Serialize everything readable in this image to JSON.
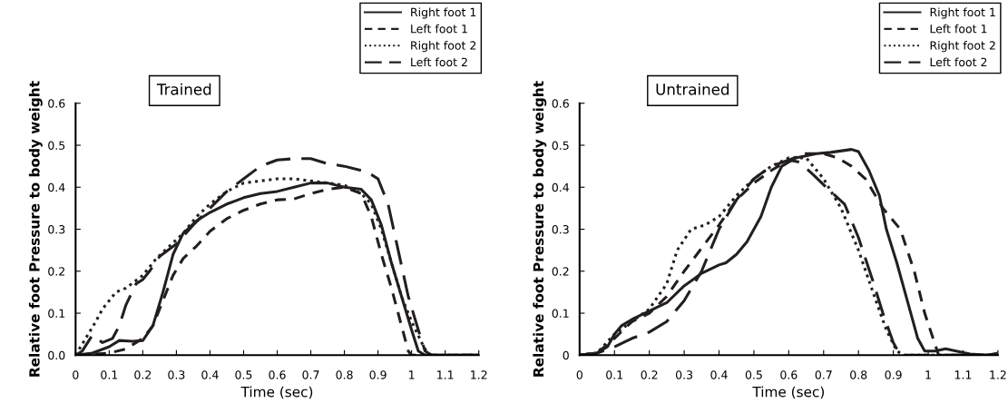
{
  "chart_data": [
    {
      "type": "line",
      "title": "Trained",
      "xlabel": "Time (sec)",
      "ylabel": "Relative foot Pressure to body weight",
      "xlim": [
        0,
        1.2
      ],
      "ylim": [
        0,
        0.6
      ],
      "xticks": [
        0,
        0.1,
        0.2,
        0.3,
        0.4,
        0.5,
        0.6,
        0.7,
        0.8,
        0.9,
        1,
        1.1,
        1.2
      ],
      "yticks": [
        {
          "value": 0,
          "label": "0.0"
        },
        0.1,
        0.2,
        0.3,
        0.4,
        0.5,
        0.6
      ],
      "grid": false,
      "legend": "top right",
      "marker": "none",
      "series": [
        {
          "name": "Right foot 1",
          "color": "#231f20",
          "line_style": "solid",
          "x": [
            0,
            0.05,
            0.1,
            0.13,
            0.17,
            0.2,
            0.23,
            0.26,
            0.29,
            0.32,
            0.36,
            0.4,
            0.45,
            0.5,
            0.55,
            0.6,
            0.65,
            0.7,
            0.75,
            0.8,
            0.85,
            0.88,
            0.91,
            0.94,
            0.97,
            1.0,
            1.02,
            1.04,
            1.2
          ],
          "values": [
            0,
            0.005,
            0.02,
            0.035,
            0.033,
            0.035,
            0.07,
            0.15,
            0.24,
            0.29,
            0.32,
            0.34,
            0.36,
            0.375,
            0.385,
            0.39,
            0.4,
            0.41,
            0.41,
            0.4,
            0.395,
            0.37,
            0.31,
            0.22,
            0.14,
            0.06,
            0.01,
            0,
            0
          ]
        },
        {
          "name": "Left foot 1",
          "color": "#231f20",
          "line_style": "dashed",
          "x": [
            0,
            0.1,
            0.15,
            0.2,
            0.23,
            0.26,
            0.29,
            0.32,
            0.36,
            0.4,
            0.45,
            0.5,
            0.55,
            0.6,
            0.65,
            0.7,
            0.75,
            0.8,
            0.85,
            0.88,
            0.91,
            0.94,
            0.97,
            0.99,
            1.0,
            1.2
          ],
          "values": [
            0,
            0.005,
            0.015,
            0.04,
            0.07,
            0.13,
            0.19,
            0.23,
            0.26,
            0.295,
            0.325,
            0.345,
            0.36,
            0.37,
            0.372,
            0.385,
            0.395,
            0.4,
            0.385,
            0.33,
            0.24,
            0.16,
            0.07,
            0.01,
            0,
            0
          ]
        },
        {
          "name": "Right foot 2",
          "color": "#231f20",
          "line_style": "dotted",
          "x": [
            0,
            0.03,
            0.06,
            0.08,
            0.12,
            0.15,
            0.2,
            0.24,
            0.28,
            0.32,
            0.36,
            0.4,
            0.45,
            0.5,
            0.55,
            0.6,
            0.65,
            0.7,
            0.75,
            0.8,
            0.85,
            0.88,
            0.91,
            0.94,
            0.97,
            1.0,
            1.03,
            1.05,
            1.2
          ],
          "values": [
            0,
            0.04,
            0.08,
            0.11,
            0.15,
            0.16,
            0.19,
            0.23,
            0.26,
            0.29,
            0.33,
            0.36,
            0.39,
            0.41,
            0.415,
            0.42,
            0.42,
            0.415,
            0.41,
            0.405,
            0.385,
            0.36,
            0.3,
            0.22,
            0.14,
            0.08,
            0.03,
            0,
            0
          ]
        },
        {
          "name": "Left foot 2",
          "color": "#231f20",
          "line_style": "longdash",
          "x": [
            0,
            0.02,
            0.05,
            0.08,
            0.11,
            0.13,
            0.15,
            0.18,
            0.2,
            0.22,
            0.25,
            0.3,
            0.35,
            0.4,
            0.45,
            0.5,
            0.55,
            0.6,
            0.65,
            0.7,
            0.75,
            0.8,
            0.85,
            0.88,
            0.9,
            0.93,
            0.96,
            0.99,
            1.02,
            1.04,
            1.06,
            1.2
          ],
          "values": [
            0,
            0.01,
            0.048,
            0.03,
            0.04,
            0.07,
            0.12,
            0.17,
            0.18,
            0.2,
            0.235,
            0.265,
            0.31,
            0.35,
            0.39,
            0.42,
            0.45,
            0.465,
            0.468,
            0.468,
            0.456,
            0.45,
            0.44,
            0.43,
            0.42,
            0.36,
            0.25,
            0.14,
            0.06,
            0.01,
            0,
            0
          ]
        }
      ]
    },
    {
      "type": "line",
      "title": "Untrained",
      "xlabel": "Time (sec)",
      "ylabel": "Relative foot Pressure to body weight",
      "xlim": [
        0,
        1.2
      ],
      "ylim": [
        0,
        0.6
      ],
      "xticks": [
        0,
        0.1,
        0.2,
        0.3,
        0.4,
        0.5,
        0.6,
        0.7,
        0.8,
        0.9,
        1,
        1.1,
        1.2
      ],
      "yticks": [
        0,
        0.1,
        0.2,
        0.3,
        0.4,
        0.5,
        0.6
      ],
      "grid": false,
      "legend": "top right",
      "marker": "none",
      "series": [
        {
          "name": "Right foot 1",
          "color": "#231f20",
          "line_style": "solid",
          "x": [
            0,
            0.05,
            0.08,
            0.1,
            0.12,
            0.15,
            0.2,
            0.25,
            0.3,
            0.35,
            0.4,
            0.42,
            0.45,
            0.48,
            0.52,
            0.55,
            0.58,
            0.62,
            0.68,
            0.72,
            0.78,
            0.8,
            0.83,
            0.86,
            0.88,
            0.91,
            0.94,
            0.97,
            0.99,
            1.02,
            1.05,
            1.08,
            1.12,
            1.17,
            1.2
          ],
          "values": [
            0,
            0.005,
            0.02,
            0.05,
            0.07,
            0.085,
            0.105,
            0.125,
            0.165,
            0.195,
            0.215,
            0.22,
            0.24,
            0.27,
            0.33,
            0.4,
            0.45,
            0.47,
            0.48,
            0.483,
            0.49,
            0.485,
            0.44,
            0.38,
            0.3,
            0.22,
            0.13,
            0.04,
            0.01,
            0.01,
            0.015,
            0.01,
            0.003,
            0,
            0.005
          ]
        },
        {
          "name": "Left foot 1",
          "color": "#231f20",
          "line_style": "dashed",
          "x": [
            0,
            0.05,
            0.1,
            0.15,
            0.2,
            0.25,
            0.3,
            0.35,
            0.4,
            0.45,
            0.5,
            0.55,
            0.6,
            0.65,
            0.7,
            0.74,
            0.78,
            0.82,
            0.87,
            0.92,
            0.96,
            0.99,
            1.03,
            1.2
          ],
          "values": [
            0,
            0.005,
            0.04,
            0.08,
            0.1,
            0.14,
            0.2,
            0.255,
            0.31,
            0.37,
            0.41,
            0.44,
            0.465,
            0.48,
            0.48,
            0.47,
            0.45,
            0.42,
            0.35,
            0.3,
            0.2,
            0.1,
            0,
            0
          ]
        },
        {
          "name": "Right foot 2",
          "color": "#231f20",
          "line_style": "dotted",
          "x": [
            0,
            0.05,
            0.1,
            0.15,
            0.2,
            0.25,
            0.28,
            0.32,
            0.36,
            0.4,
            0.45,
            0.5,
            0.55,
            0.6,
            0.65,
            0.7,
            0.75,
            0.8,
            0.85,
            0.88,
            0.91,
            0.93,
            1.2
          ],
          "values": [
            0,
            0.005,
            0.05,
            0.08,
            0.11,
            0.17,
            0.25,
            0.3,
            0.31,
            0.33,
            0.38,
            0.42,
            0.45,
            0.47,
            0.47,
            0.42,
            0.35,
            0.25,
            0.13,
            0.06,
            0.01,
            0,
            0
          ]
        },
        {
          "name": "Left foot 2",
          "color": "#231f20",
          "line_style": "longdash",
          "x": [
            0,
            0.05,
            0.1,
            0.15,
            0.2,
            0.25,
            0.3,
            0.35,
            0.4,
            0.45,
            0.5,
            0.55,
            0.6,
            0.63,
            0.67,
            0.72,
            0.76,
            0.8,
            0.84,
            0.87,
            0.9,
            0.92,
            1.2
          ],
          "values": [
            0,
            0.005,
            0.02,
            0.04,
            0.055,
            0.08,
            0.13,
            0.2,
            0.3,
            0.37,
            0.42,
            0.45,
            0.465,
            0.46,
            0.43,
            0.39,
            0.36,
            0.28,
            0.18,
            0.1,
            0.03,
            0,
            0
          ]
        }
      ]
    }
  ]
}
